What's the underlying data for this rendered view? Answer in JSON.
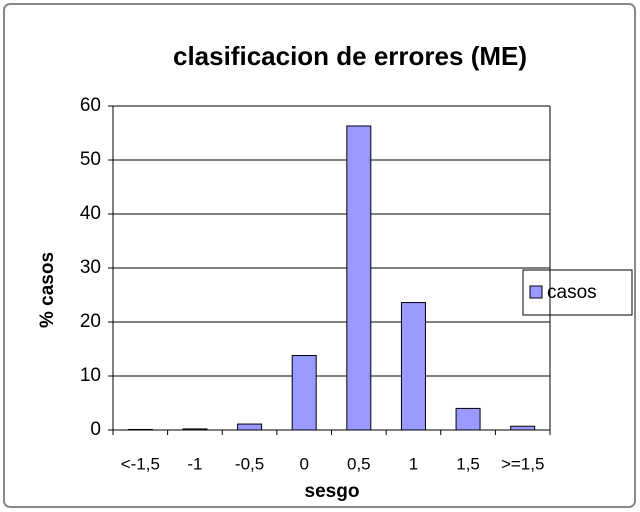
{
  "chart_data": {
    "type": "bar",
    "title": "clasificacion de errores (ME)",
    "x_label": "sesgo",
    "y_label": "% casos",
    "categories": [
      "<-1,5",
      "-1",
      "-0,5",
      "0",
      "0,5",
      "1",
      "1,5",
      ">=1,5"
    ],
    "series": [
      {
        "name": "casos",
        "color": "#9999ff",
        "values": [
          0.1,
          0.2,
          1.1,
          13.8,
          56.3,
          23.6,
          4.0,
          0.7
        ]
      }
    ],
    "ylim": [
      0,
      60
    ],
    "yticks": [
      0,
      10,
      20,
      30,
      40,
      50,
      60
    ],
    "grid": true,
    "legend": "right"
  }
}
